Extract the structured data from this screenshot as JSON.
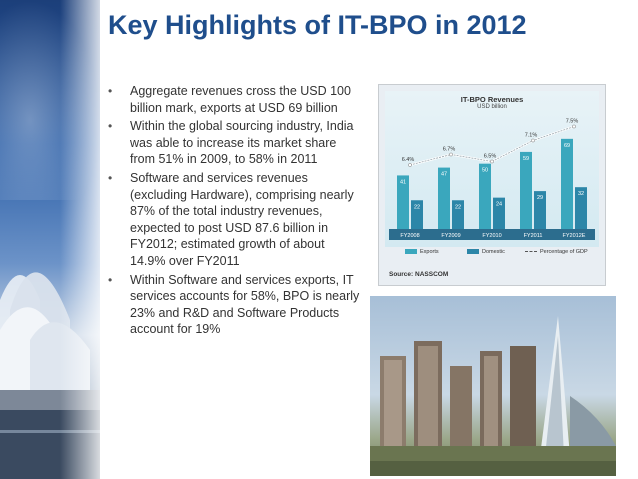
{
  "slide": {
    "title": "Key Highlights of IT-BPO in 2012",
    "bullets": [
      "Aggregate revenues cross the USD 100 billion mark, exports at USD 69 billion",
      "Within the global sourcing industry, India was able to increase its market share from 51% in 2009, to 58% in 2011",
      "Software and services revenues (excluding Hardware), comprising nearly 87% of the total industry revenues, expected to post USD 87.6 billion in FY2012; estimated growth of about 14.9% over FY2011",
      "Within Software and services exports, IT services accounts for 58%, BPO is nearly 23% and R&D and Software Products account for 19%"
    ],
    "bullet_glyph": "•"
  },
  "chart_data": {
    "type": "bar",
    "title": "IT-BPO Revenues",
    "subtitle": "USD billion",
    "categories": [
      "FY2008",
      "FY2009",
      "FY2010",
      "FY2011",
      "FY2012E"
    ],
    "series": [
      {
        "name": "Exports",
        "values": [
          41,
          47,
          50,
          59,
          69
        ],
        "color": "#3aa7bd"
      },
      {
        "name": "Domestic",
        "values": [
          22,
          22,
          24,
          29,
          32
        ],
        "color": "#2c86a8"
      }
    ],
    "line": {
      "name": "Percentage of GDP",
      "values": [
        6.4,
        6.7,
        6.5,
        7.1,
        7.5
      ],
      "labels": [
        "6.4%",
        "6.7%",
        "6.5%",
        "7.1%",
        "7.5%"
      ]
    },
    "ylim": [
      0,
      75
    ],
    "source": "Source: NASSCOM"
  }
}
